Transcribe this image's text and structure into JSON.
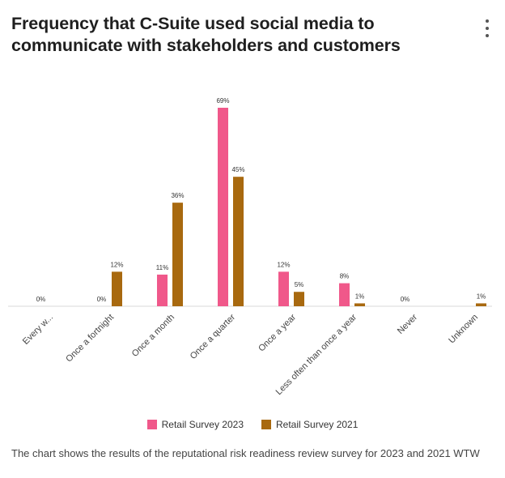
{
  "header": {
    "title": "Frequency that C-Suite used social media to communicate with stakeholders and customers",
    "menu_icon": "more-vertical-icon"
  },
  "chart_data": {
    "type": "bar",
    "title": "Frequency that C-Suite used social media to communicate with stakeholders and customers",
    "categories": [
      "Every w...",
      "Once a fortnight",
      "Once a month",
      "Once a quarter",
      "Once a year",
      "Less often than once a year",
      "Never",
      "Unknown"
    ],
    "series": [
      {
        "name": "Retail Survey 2023",
        "color": "#f0588a",
        "values": [
          0,
          0,
          11,
          69,
          12,
          8,
          0,
          null
        ],
        "labels": [
          "0%",
          "0%",
          "11%",
          "69%",
          "12%",
          "8%",
          "0%",
          null
        ]
      },
      {
        "name": "Retail Survey 2021",
        "color": "#a8690f",
        "values": [
          null,
          12,
          36,
          45,
          5,
          1,
          null,
          1
        ],
        "labels": [
          null,
          "12%",
          "36%",
          "45%",
          "5%",
          "1%",
          null,
          "1%"
        ]
      }
    ],
    "xlabel": "",
    "ylabel": "",
    "ylim": [
      0,
      69
    ],
    "grid": false,
    "legend": "bottom"
  },
  "caption": "The chart shows the results of the reputational risk readiness review survey for 2023 and 2021 WTW"
}
